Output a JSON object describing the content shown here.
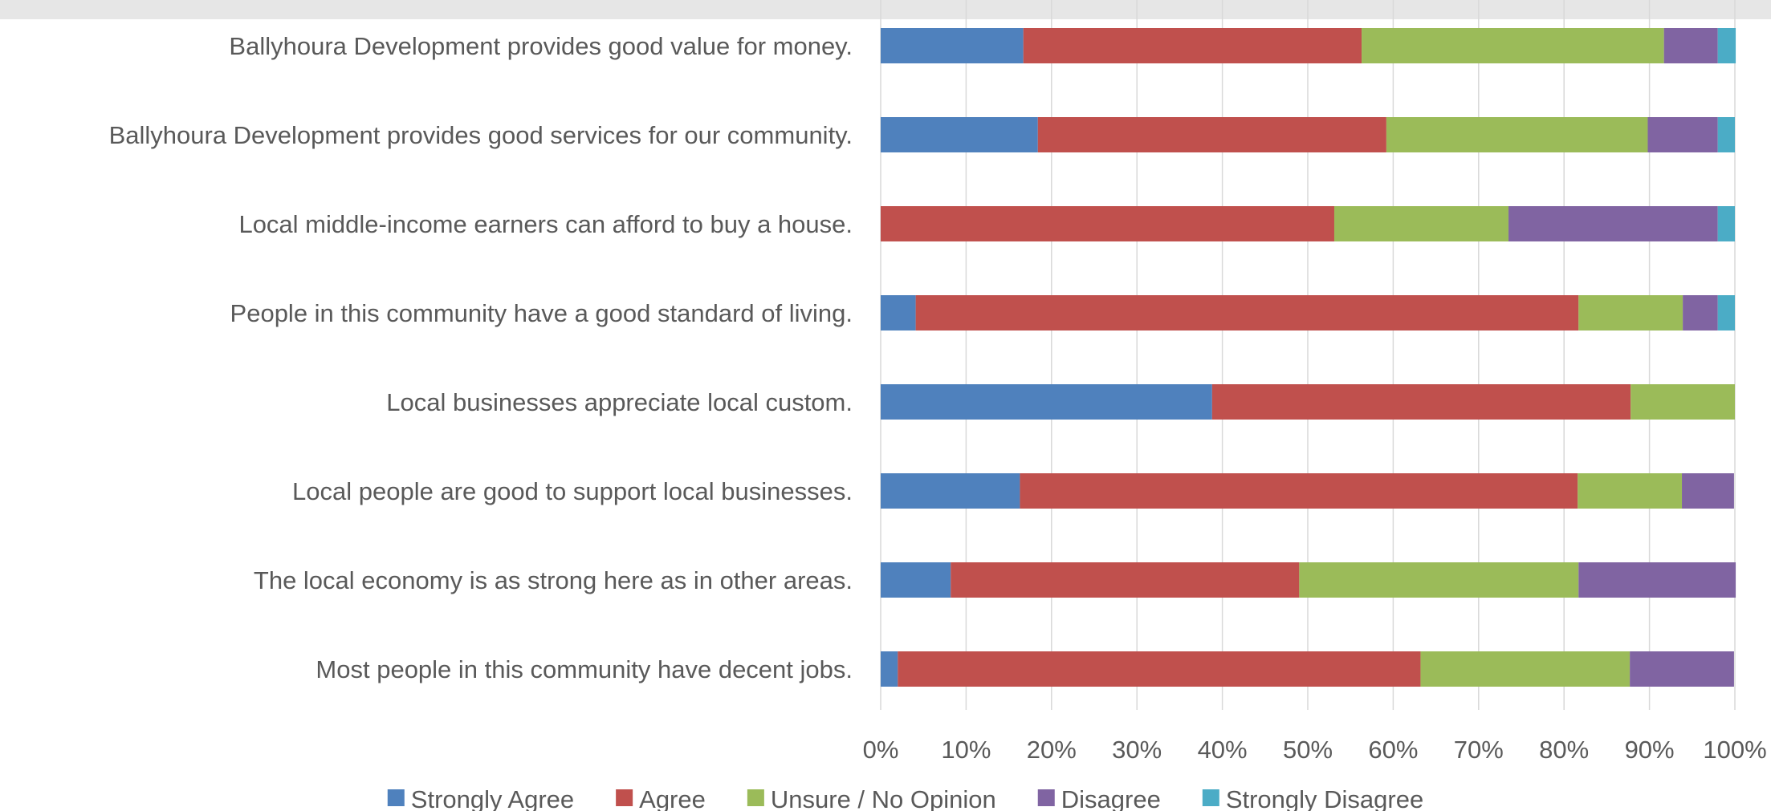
{
  "chart_data": {
    "type": "bar",
    "orientation": "horizontal",
    "stacked": "100%",
    "title": "",
    "xlabel": "",
    "ylabel": "",
    "xlim": [
      0,
      100
    ],
    "x_ticks": [
      "0%",
      "10%",
      "20%",
      "30%",
      "40%",
      "50%",
      "60%",
      "70%",
      "80%",
      "90%",
      "100%"
    ],
    "grid": true,
    "legend_position": "bottom",
    "categories": [
      "Ballyhoura Development provides good value for money.",
      "Ballyhoura Development provides good services for our community.",
      "Local middle-income earners can afford to buy a house.",
      "People in this community have a good standard of living.",
      "Local businesses appreciate local custom.",
      "Local people are good to support local businesses.",
      "The local economy is as strong here as in other areas.",
      "Most people in this community have decent jobs."
    ],
    "series": [
      {
        "name": "Strongly Agree",
        "color": "#4f81bd",
        "values": [
          16.7,
          18.4,
          0,
          4.1,
          38.8,
          16.3,
          8.2,
          2.0
        ]
      },
      {
        "name": "Agree",
        "color": "#c0504d",
        "values": [
          39.6,
          40.8,
          53.1,
          77.6,
          49.0,
          65.3,
          40.8,
          61.2
        ]
      },
      {
        "name": "Unsure / No Opinion",
        "color": "#9bbb59",
        "values": [
          35.4,
          30.6,
          20.4,
          12.2,
          12.2,
          12.2,
          32.7,
          24.5
        ]
      },
      {
        "name": "Disagree",
        "color": "#8064a2",
        "values": [
          6.3,
          8.2,
          24.5,
          4.1,
          0,
          6.1,
          18.4,
          12.2
        ]
      },
      {
        "name": "Strongly Disagree",
        "color": "#4bacc6",
        "values": [
          2.1,
          2.0,
          2.0,
          2.0,
          0,
          0,
          0,
          0
        ]
      }
    ]
  }
}
